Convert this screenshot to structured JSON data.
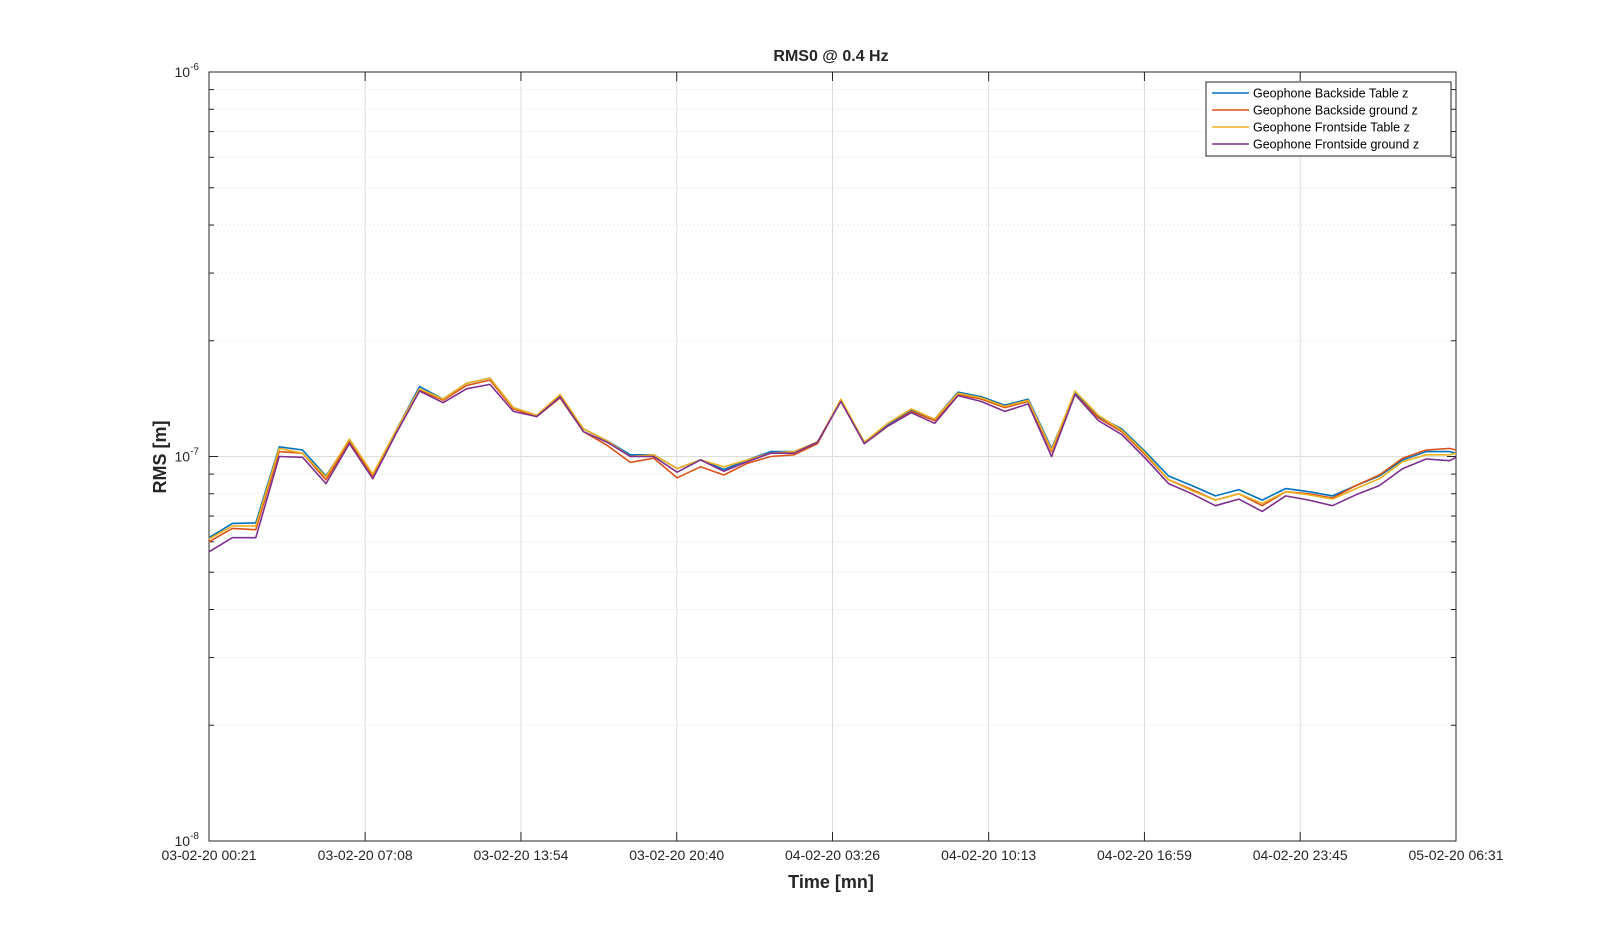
{
  "chart_data": {
    "type": "line",
    "title": "RMS0 @ 0.4 Hz",
    "xlabel": "Time [mn]",
    "ylabel": "RMS [m]",
    "yscale": "log",
    "ylim": [
      1e-08,
      1e-06
    ],
    "y_ticks": [
      {
        "base": "10",
        "exp": "-8",
        "value": 1e-08
      },
      {
        "base": "10",
        "exp": "-7",
        "value": 1e-07
      },
      {
        "base": "10",
        "exp": "-6",
        "value": 1e-06
      }
    ],
    "x_tick_labels": [
      "03-02-20 00:21",
      "03-02-20 07:08",
      "03-02-20 13:54",
      "03-02-20 20:40",
      "04-02-20 03:26",
      "04-02-20 10:13",
      "04-02-20 16:59",
      "04-02-20 23:45",
      "05-02-20 06:31"
    ],
    "grid": true,
    "legend_position": "top-right",
    "x_values": [
      "03-02-20 00:21",
      "03-02-20 01:22",
      "03-02-20 02:23",
      "03-02-20 03:24",
      "03-02-20 04:25",
      "03-02-20 05:26",
      "03-02-20 06:27",
      "03-02-20 07:28",
      "03-02-20 08:29",
      "03-02-20 09:30",
      "03-02-20 10:31",
      "03-02-20 11:32",
      "03-02-20 12:33",
      "03-02-20 13:34",
      "03-02-20 14:35",
      "03-02-20 15:36",
      "03-02-20 16:37",
      "03-02-20 17:38",
      "03-02-20 18:39",
      "03-02-20 19:40",
      "03-02-20 20:41",
      "03-02-20 21:42",
      "03-02-20 22:43",
      "03-02-20 23:44",
      "04-02-20 00:45",
      "04-02-20 01:46",
      "04-02-20 02:47",
      "04-02-20 03:48",
      "04-02-20 04:49",
      "04-02-20 05:50",
      "04-02-20 06:51",
      "04-02-20 07:52",
      "04-02-20 08:53",
      "04-02-20 09:54",
      "04-02-20 10:55",
      "04-02-20 11:56",
      "04-02-20 12:57",
      "04-02-20 13:58",
      "04-02-20 14:59",
      "04-02-20 16:00",
      "04-02-20 17:01",
      "04-02-20 18:02",
      "04-02-20 19:03",
      "04-02-20 20:04",
      "04-02-20 21:05",
      "04-02-20 22:06",
      "04-02-20 23:07",
      "05-02-20 00:08",
      "05-02-20 01:09",
      "05-02-20 02:10",
      "05-02-20 03:11",
      "05-02-20 04:12",
      "05-02-20 05:13",
      "05-02-20 06:14",
      "05-02-20 06:31"
    ],
    "series": [
      {
        "name": "Geophone Backside Table z",
        "color": "#0072BD",
        "values": [
          6.15e-08,
          6.7e-08,
          6.72e-08,
          1.06e-07,
          1.04e-07,
          8.9e-08,
          1.1e-07,
          8.95e-08,
          1.17e-07,
          1.52e-07,
          1.41e-07,
          1.55e-07,
          1.6e-07,
          1.34e-07,
          1.28e-07,
          1.44e-07,
          1.18e-07,
          1.1e-07,
          1.01e-07,
          1.01e-07,
          9.3e-08,
          9.8e-08,
          9.25e-08,
          9.8e-08,
          1.03e-07,
          1.03e-07,
          1.09e-07,
          1.4e-07,
          1.09e-07,
          1.21e-07,
          1.32e-07,
          1.25e-07,
          1.47e-07,
          1.43e-07,
          1.36e-07,
          1.41e-07,
          1.05e-07,
          1.46e-07,
          1.27e-07,
          1.18e-07,
          1.03e-07,
          8.9e-08,
          8.4e-08,
          7.9e-08,
          8.2e-08,
          7.7e-08,
          8.25e-08,
          8.1e-08,
          7.9e-08,
          8.4e-08,
          8.9e-08,
          9.8e-08,
          1.03e-07,
          1.03e-07,
          1.02e-07
        ]
      },
      {
        "name": "Geophone Backside ground z",
        "color": "#D95319",
        "values": [
          6e-08,
          6.5e-08,
          6.45e-08,
          1.03e-07,
          1.02e-07,
          8.7e-08,
          1.09e-07,
          8.9e-08,
          1.15e-07,
          1.49e-07,
          1.4e-07,
          1.53e-07,
          1.58e-07,
          1.33e-07,
          1.27e-07,
          1.42e-07,
          1.16e-07,
          1.07e-07,
          9.65e-08,
          9.9e-08,
          8.8e-08,
          9.4e-08,
          8.95e-08,
          9.6e-08,
          1e-07,
          1.01e-07,
          1.08e-07,
          1.4e-07,
          1.08e-07,
          1.2e-07,
          1.31e-07,
          1.24e-07,
          1.45e-07,
          1.41e-07,
          1.34e-07,
          1.39e-07,
          1.03e-07,
          1.45e-07,
          1.26e-07,
          1.16e-07,
          1.01e-07,
          8.7e-08,
          8.2e-08,
          7.7e-08,
          8e-08,
          7.45e-08,
          8.1e-08,
          8e-08,
          7.8e-08,
          8.4e-08,
          8.95e-08,
          9.9e-08,
          1.04e-07,
          1.05e-07,
          1.04e-07
        ]
      },
      {
        "name": "Geophone Frontside Table z",
        "color": "#EDB120",
        "values": [
          6.1e-08,
          6.6e-08,
          6.6e-08,
          1.05e-07,
          1.02e-07,
          8.85e-08,
          1.11e-07,
          9e-08,
          1.17e-07,
          1.5e-07,
          1.41e-07,
          1.55e-07,
          1.6e-07,
          1.34e-07,
          1.28e-07,
          1.45e-07,
          1.18e-07,
          1.1e-07,
          1e-07,
          1.01e-07,
          9.3e-08,
          9.8e-08,
          9.4e-08,
          9.8e-08,
          1.02e-07,
          1.03e-07,
          1.09e-07,
          1.41e-07,
          1.09e-07,
          1.22e-07,
          1.33e-07,
          1.25e-07,
          1.46e-07,
          1.42e-07,
          1.35e-07,
          1.4e-07,
          1.04e-07,
          1.48e-07,
          1.28e-07,
          1.17e-07,
          1.02e-07,
          8.7e-08,
          8.15e-08,
          7.7e-08,
          8e-08,
          7.55e-08,
          8.1e-08,
          7.95e-08,
          7.75e-08,
          8.25e-08,
          8.75e-08,
          9.7e-08,
          1.01e-07,
          1.01e-07,
          1.02e-07
        ]
      },
      {
        "name": "Geophone Frontside ground z",
        "color": "#7E2F8E",
        "values": [
          5.65e-08,
          6.15e-08,
          6.15e-08,
          1e-07,
          9.95e-08,
          8.5e-08,
          1.08e-07,
          8.75e-08,
          1.15e-07,
          1.48e-07,
          1.38e-07,
          1.5e-07,
          1.54e-07,
          1.31e-07,
          1.27e-07,
          1.43e-07,
          1.16e-07,
          1.09e-07,
          1e-07,
          1e-07,
          9.1e-08,
          9.8e-08,
          9.15e-08,
          9.7e-08,
          1.02e-07,
          1.02e-07,
          1.09e-07,
          1.39e-07,
          1.08e-07,
          1.2e-07,
          1.3e-07,
          1.22e-07,
          1.44e-07,
          1.39e-07,
          1.31e-07,
          1.37e-07,
          1e-07,
          1.45e-07,
          1.24e-07,
          1.14e-07,
          9.9e-08,
          8.5e-08,
          8e-08,
          7.45e-08,
          7.75e-08,
          7.2e-08,
          7.9e-08,
          7.7e-08,
          7.45e-08,
          7.95e-08,
          8.4e-08,
          9.3e-08,
          9.85e-08,
          9.75e-08,
          9.95e-08
        ]
      }
    ]
  }
}
